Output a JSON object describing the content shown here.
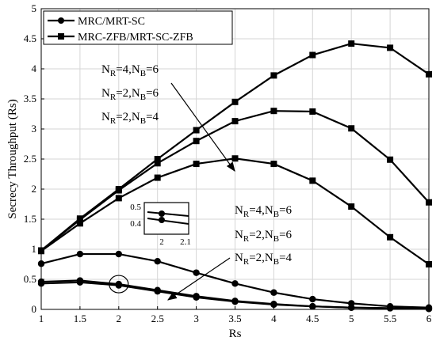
{
  "chart_data": {
    "type": "line",
    "xlabel": "Rs",
    "ylabel": "Secrecy Throughput (Rs)",
    "xlim": [
      1,
      6
    ],
    "ylim": [
      0,
      5
    ],
    "x_ticks": [
      "1",
      "1.5",
      "2",
      "2.5",
      "3",
      "3.5",
      "4",
      "4.5",
      "5",
      "5.5",
      "6"
    ],
    "y_ticks": [
      "0",
      "0.5",
      "1",
      "1.5",
      "2",
      "2.5",
      "3",
      "3.5",
      "4",
      "4.5",
      "5"
    ],
    "grid": true,
    "legend_position": "top-left",
    "legend": [
      {
        "label": "MRC/MRT-SC",
        "marker": "circle"
      },
      {
        "label": "MRC-ZFB/MRT-SC-ZFB",
        "marker": "square"
      }
    ],
    "x": [
      1,
      1.5,
      2,
      2.5,
      3,
      3.5,
      4,
      4.5,
      5,
      5.5,
      6
    ],
    "series": [
      {
        "group": "MRC/MRT-SC",
        "config": "NR=4,NB=6",
        "marker": "circle",
        "values": [
          0.76,
          0.92,
          0.92,
          0.8,
          0.61,
          0.43,
          0.28,
          0.17,
          0.1,
          0.05,
          0.03
        ]
      },
      {
        "group": "MRC/MRT-SC",
        "config": "NR=2,NB=6",
        "marker": "circle",
        "values": [
          0.46,
          0.48,
          0.42,
          0.32,
          0.22,
          0.14,
          0.09,
          0.05,
          0.03,
          0.02,
          0.01
        ]
      },
      {
        "group": "MRC/MRT-SC",
        "config": "NR=2,NB=4",
        "marker": "circle",
        "values": [
          0.43,
          0.45,
          0.4,
          0.3,
          0.2,
          0.13,
          0.08,
          0.05,
          0.03,
          0.02,
          0.01
        ]
      },
      {
        "group": "MRC-ZFB/MRT-SC-ZFB",
        "config": "NR=4,NB=6",
        "marker": "square",
        "values": [
          0.98,
          1.51,
          2.0,
          2.5,
          2.98,
          3.45,
          3.89,
          4.23,
          4.42,
          4.35,
          3.91
        ]
      },
      {
        "group": "MRC-ZFB/MRT-SC-ZFB",
        "config": "NR=2,NB=6",
        "marker": "square",
        "values": [
          0.98,
          1.49,
          1.98,
          2.43,
          2.8,
          3.13,
          3.3,
          3.29,
          3.01,
          2.49,
          1.78
        ]
      },
      {
        "group": "MRC-ZFB/MRT-SC-ZFB",
        "config": "NR=2,NB=4",
        "marker": "square",
        "values": [
          0.97,
          1.43,
          1.85,
          2.19,
          2.42,
          2.51,
          2.42,
          2.14,
          1.71,
          1.2,
          0.75
        ]
      }
    ],
    "annotations_upper": {
      "lines": [
        {
          "base": "N",
          "sub1": "R",
          "mid": "=4,N",
          "sub2": "B",
          "tail": "=6"
        },
        {
          "base": "N",
          "sub1": "R",
          "mid": "=2,N",
          "sub2": "B",
          "tail": "=6"
        },
        {
          "base": "N",
          "sub1": "R",
          "mid": "=2,N",
          "sub2": "B",
          "tail": "=4"
        }
      ]
    },
    "annotations_lower": {
      "lines": [
        {
          "base": "N",
          "sub1": "R",
          "mid": "=4,N",
          "sub2": "B",
          "tail": "=6"
        },
        {
          "base": "N",
          "sub1": "R",
          "mid": "=2,N",
          "sub2": "B",
          "tail": "=6"
        },
        {
          "base": "N",
          "sub1": "R",
          "mid": "=2,N",
          "sub2": "B",
          "tail": "=4"
        }
      ]
    },
    "inset": {
      "x_ticks": [
        "2",
        "2.1"
      ],
      "y_ticks": [
        "0.5",
        "0.4"
      ]
    }
  }
}
